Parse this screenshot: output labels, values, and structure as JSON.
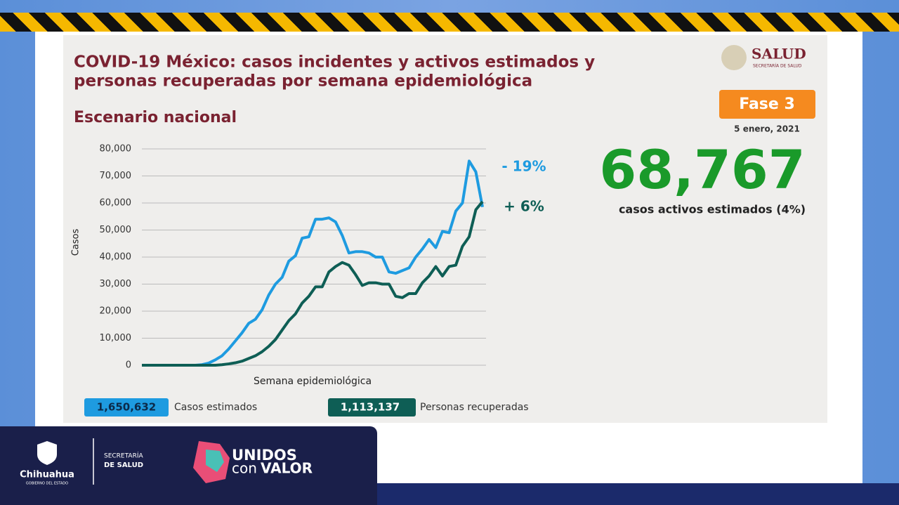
{
  "chart_data": {
    "type": "line",
    "title": "COVID-19 México: casos incidentes y activos estimados y",
    "title_line2": "personas recuperadas por semana epidemiológica",
    "subtitle": "Escenario nacional",
    "x_label": "Semana epidemiológica",
    "y_label": "Casos",
    "x": [
      1,
      2,
      3,
      4,
      5,
      6,
      7,
      8,
      9,
      10,
      11,
      12,
      13,
      14,
      15,
      16,
      17,
      18,
      19,
      20,
      21,
      22,
      23,
      24,
      25,
      26,
      27,
      28,
      29,
      30,
      31,
      32,
      33,
      34,
      35,
      36,
      37,
      38,
      39,
      40,
      41,
      42,
      43,
      44,
      45,
      46,
      47,
      48,
      49,
      50,
      51,
      52
    ],
    "xlim": [
      1,
      52
    ],
    "ylim": [
      0,
      80000
    ],
    "yticks": [
      0,
      {
        "value": 10000,
        "label": "10,000"
      },
      {
        "value": 20000,
        "label": "20,000"
      },
      {
        "value": 30000,
        "label": "30,000"
      },
      {
        "value": 40000,
        "label": "40,000"
      },
      {
        "value": 50000,
        "label": "50,000"
      },
      {
        "value": 60000,
        "label": "60,000"
      },
      {
        "value": 70000,
        "label": "70,000"
      },
      {
        "value": 80000,
        "label": "80,000"
      }
    ],
    "grid": true,
    "series": [
      {
        "name": "Casos estimados",
        "color": "#1e9be0",
        "total": "1,650,632",
        "change": "- 19%",
        "values": [
          0,
          0,
          0,
          0,
          0,
          0,
          0,
          0,
          0,
          200,
          800,
          2000,
          3500,
          6000,
          9000,
          12000,
          15500,
          17000,
          20500,
          26000,
          30000,
          32500,
          38500,
          40500,
          47000,
          47500,
          54000,
          54000,
          54500,
          53000,
          48000,
          41500,
          42000,
          42000,
          41500,
          40000,
          40000,
          34500,
          34000,
          35000,
          36000,
          40000,
          43000,
          46500,
          43500,
          49500,
          49000,
          57000,
          60000,
          75500,
          71500,
          58500
        ]
      },
      {
        "name": "Personas recuperadas",
        "color": "#0e5e55",
        "total": "1,113,137",
        "change": "+ 6%",
        "values": [
          0,
          0,
          0,
          0,
          0,
          0,
          0,
          0,
          0,
          0,
          0,
          0,
          200,
          500,
          900,
          1500,
          2500,
          3500,
          5000,
          7000,
          9500,
          13000,
          16500,
          19000,
          23000,
          25500,
          29000,
          29000,
          34500,
          36500,
          38000,
          37000,
          33500,
          29500,
          30500,
          30500,
          30000,
          30000,
          25500,
          25000,
          26500,
          26500,
          30500,
          33000,
          36500,
          33000,
          36500,
          37000,
          44000,
          47500,
          57500,
          60500
        ]
      }
    ],
    "phase": "Fase 3",
    "date": "5 enero, 2021",
    "active_cases": "68,767",
    "active_cases_label": "casos activos estimados (4%)"
  },
  "branding": {
    "salud": "SALUD",
    "salud_sub": "SECRETARÍA DE SALUD",
    "state": "Chihuahua",
    "state_sub": "GOBIERNO DEL ESTADO",
    "dept_1": "SECRETARÍA",
    "dept_2": "DE SALUD",
    "slogan_1": "UNIDOS",
    "slogan_2": "con",
    "slogan_3": "VALOR"
  }
}
